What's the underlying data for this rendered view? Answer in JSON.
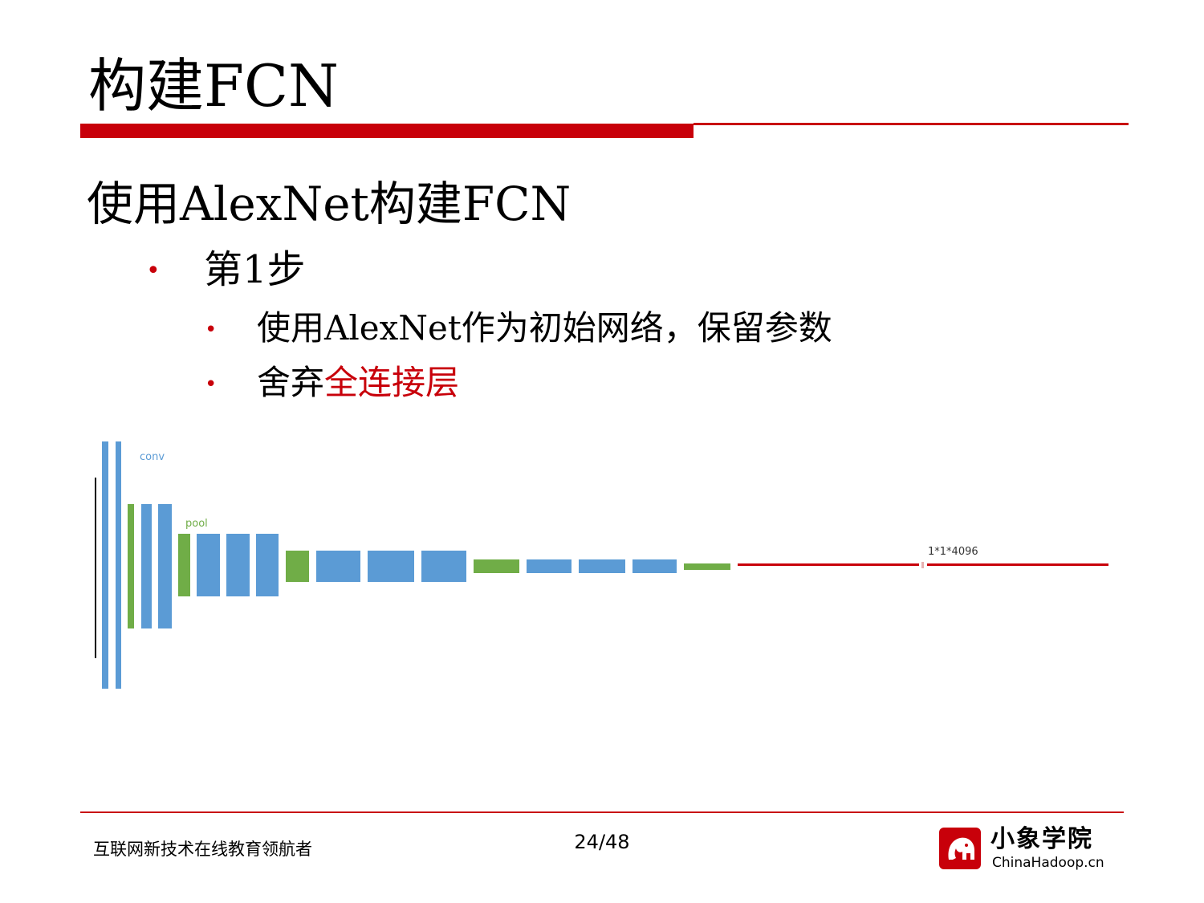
{
  "slide": {
    "title": "构建FCN",
    "heading": "使用AlexNet构建FCN",
    "bullets": [
      {
        "marker": "•",
        "text": "第1步"
      },
      {
        "marker": "•",
        "text": "使用AlexNet作为初始网络，保留参数"
      },
      {
        "marker": "•",
        "prefix": "舍弃",
        "highlight": "全连接层"
      }
    ],
    "accent_color": "#c8000a"
  },
  "diagram": {
    "labels": {
      "conv": "conv",
      "pool": "pool",
      "output": "1*1*4096"
    },
    "colors": {
      "conv": "#5b9bd5",
      "pool": "#70ad47",
      "line": "#c8000a"
    }
  },
  "footer": {
    "slogan": "互联网新技术在线教育领航者",
    "page": "24/48",
    "logo_cn": "小象学院",
    "logo_en": "ChinaHadoop.cn"
  }
}
